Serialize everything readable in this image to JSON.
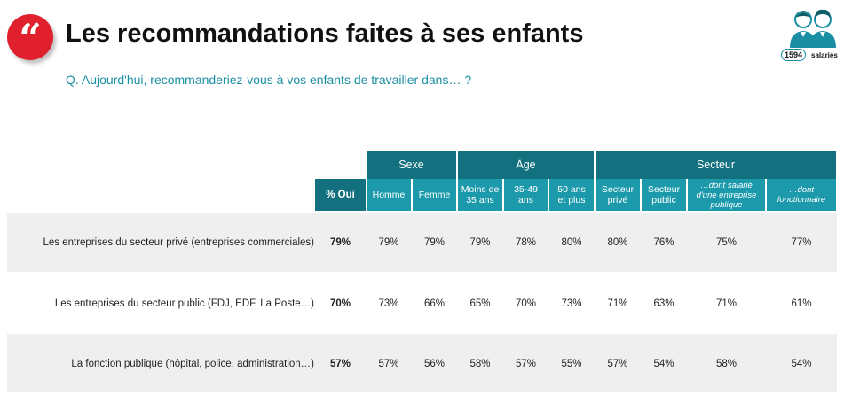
{
  "header": {
    "title": "Les recommandations faites à ses enfants",
    "question": "Q. Aujourd'hui, recommanderiez-vous à vos enfants de travailler dans… ?",
    "quote_glyph": "“",
    "sample_count": "1594",
    "sample_unit": "salariés"
  },
  "colors": {
    "accent": "#e0202c",
    "header_dark": "#12707f",
    "header_light": "#1c9aab",
    "question": "#1a8fa3",
    "row_shade": "#efefef"
  },
  "icons": {
    "quote": "quote-icon",
    "people": "people-icon"
  },
  "table": {
    "groups": [
      {
        "label": "Sexe"
      },
      {
        "label": "Âge"
      },
      {
        "label": "Secteur"
      }
    ],
    "oui_label": "% Oui",
    "columns": [
      {
        "line1": "Homme",
        "line2": ""
      },
      {
        "line1": "Femme",
        "line2": ""
      },
      {
        "line1": "Moins de",
        "line2": "35 ans"
      },
      {
        "line1": "35-49",
        "line2": "ans"
      },
      {
        "line1": "50 ans",
        "line2": "et plus"
      },
      {
        "line1": "Secteur",
        "line2": "privé"
      },
      {
        "line1": "Secteur",
        "line2": "public"
      },
      {
        "line1": "…dont salarié",
        "line2": "d'une entreprise publique"
      },
      {
        "line1": "…dont",
        "line2": "fonctionnaire"
      }
    ],
    "rows": [
      {
        "label": "Les entreprises du secteur privé (entreprises commerciales)",
        "oui": "79%",
        "values": [
          "79%",
          "79%",
          "79%",
          "78%",
          "80%",
          "80%",
          "76%",
          "75%",
          "77%"
        ]
      },
      {
        "label": "Les entreprises du secteur public (FDJ, EDF, La Poste…)",
        "oui": "70%",
        "values": [
          "73%",
          "66%",
          "65%",
          "70%",
          "73%",
          "71%",
          "63%",
          "71%",
          "61%"
        ]
      },
      {
        "label": "La fonction publique (hôpital, police, administration…)",
        "oui": "57%",
        "values": [
          "57%",
          "56%",
          "58%",
          "57%",
          "55%",
          "57%",
          "54%",
          "58%",
          "54%"
        ]
      }
    ]
  }
}
